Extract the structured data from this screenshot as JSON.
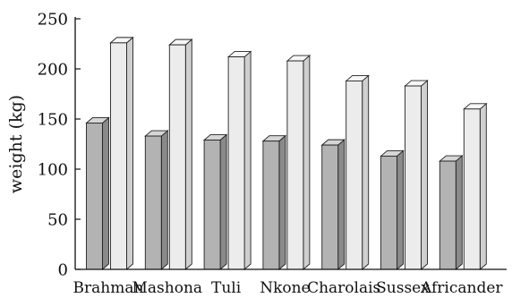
{
  "chart_data": {
    "type": "bar",
    "categories": [
      "Brahman",
      "Mashona",
      "Tuli",
      "Nkone",
      "Charolais",
      "Sussex",
      "Africander"
    ],
    "series": [
      {
        "values": [
          146,
          133,
          129,
          128,
          124,
          113,
          108
        ]
      },
      {
        "values": [
          226,
          224,
          212,
          208,
          188,
          183,
          160
        ]
      }
    ],
    "xlabel": "",
    "ylabel": "weight (kg)",
    "ylim": [
      0,
      250
    ],
    "yticks": [
      0,
      50,
      100,
      150,
      200,
      250
    ],
    "grid": false,
    "style": "3d-bars",
    "colors": {
      "series0_front": "#b3b3b3",
      "series0_side": "#8a8a8a",
      "series0_top": "#d6d6d6",
      "series1_front": "#ececec",
      "series1_side": "#cfcfcf",
      "series1_top": "#f7f7f7",
      "edge": "#222222",
      "axis": "#111111"
    }
  }
}
